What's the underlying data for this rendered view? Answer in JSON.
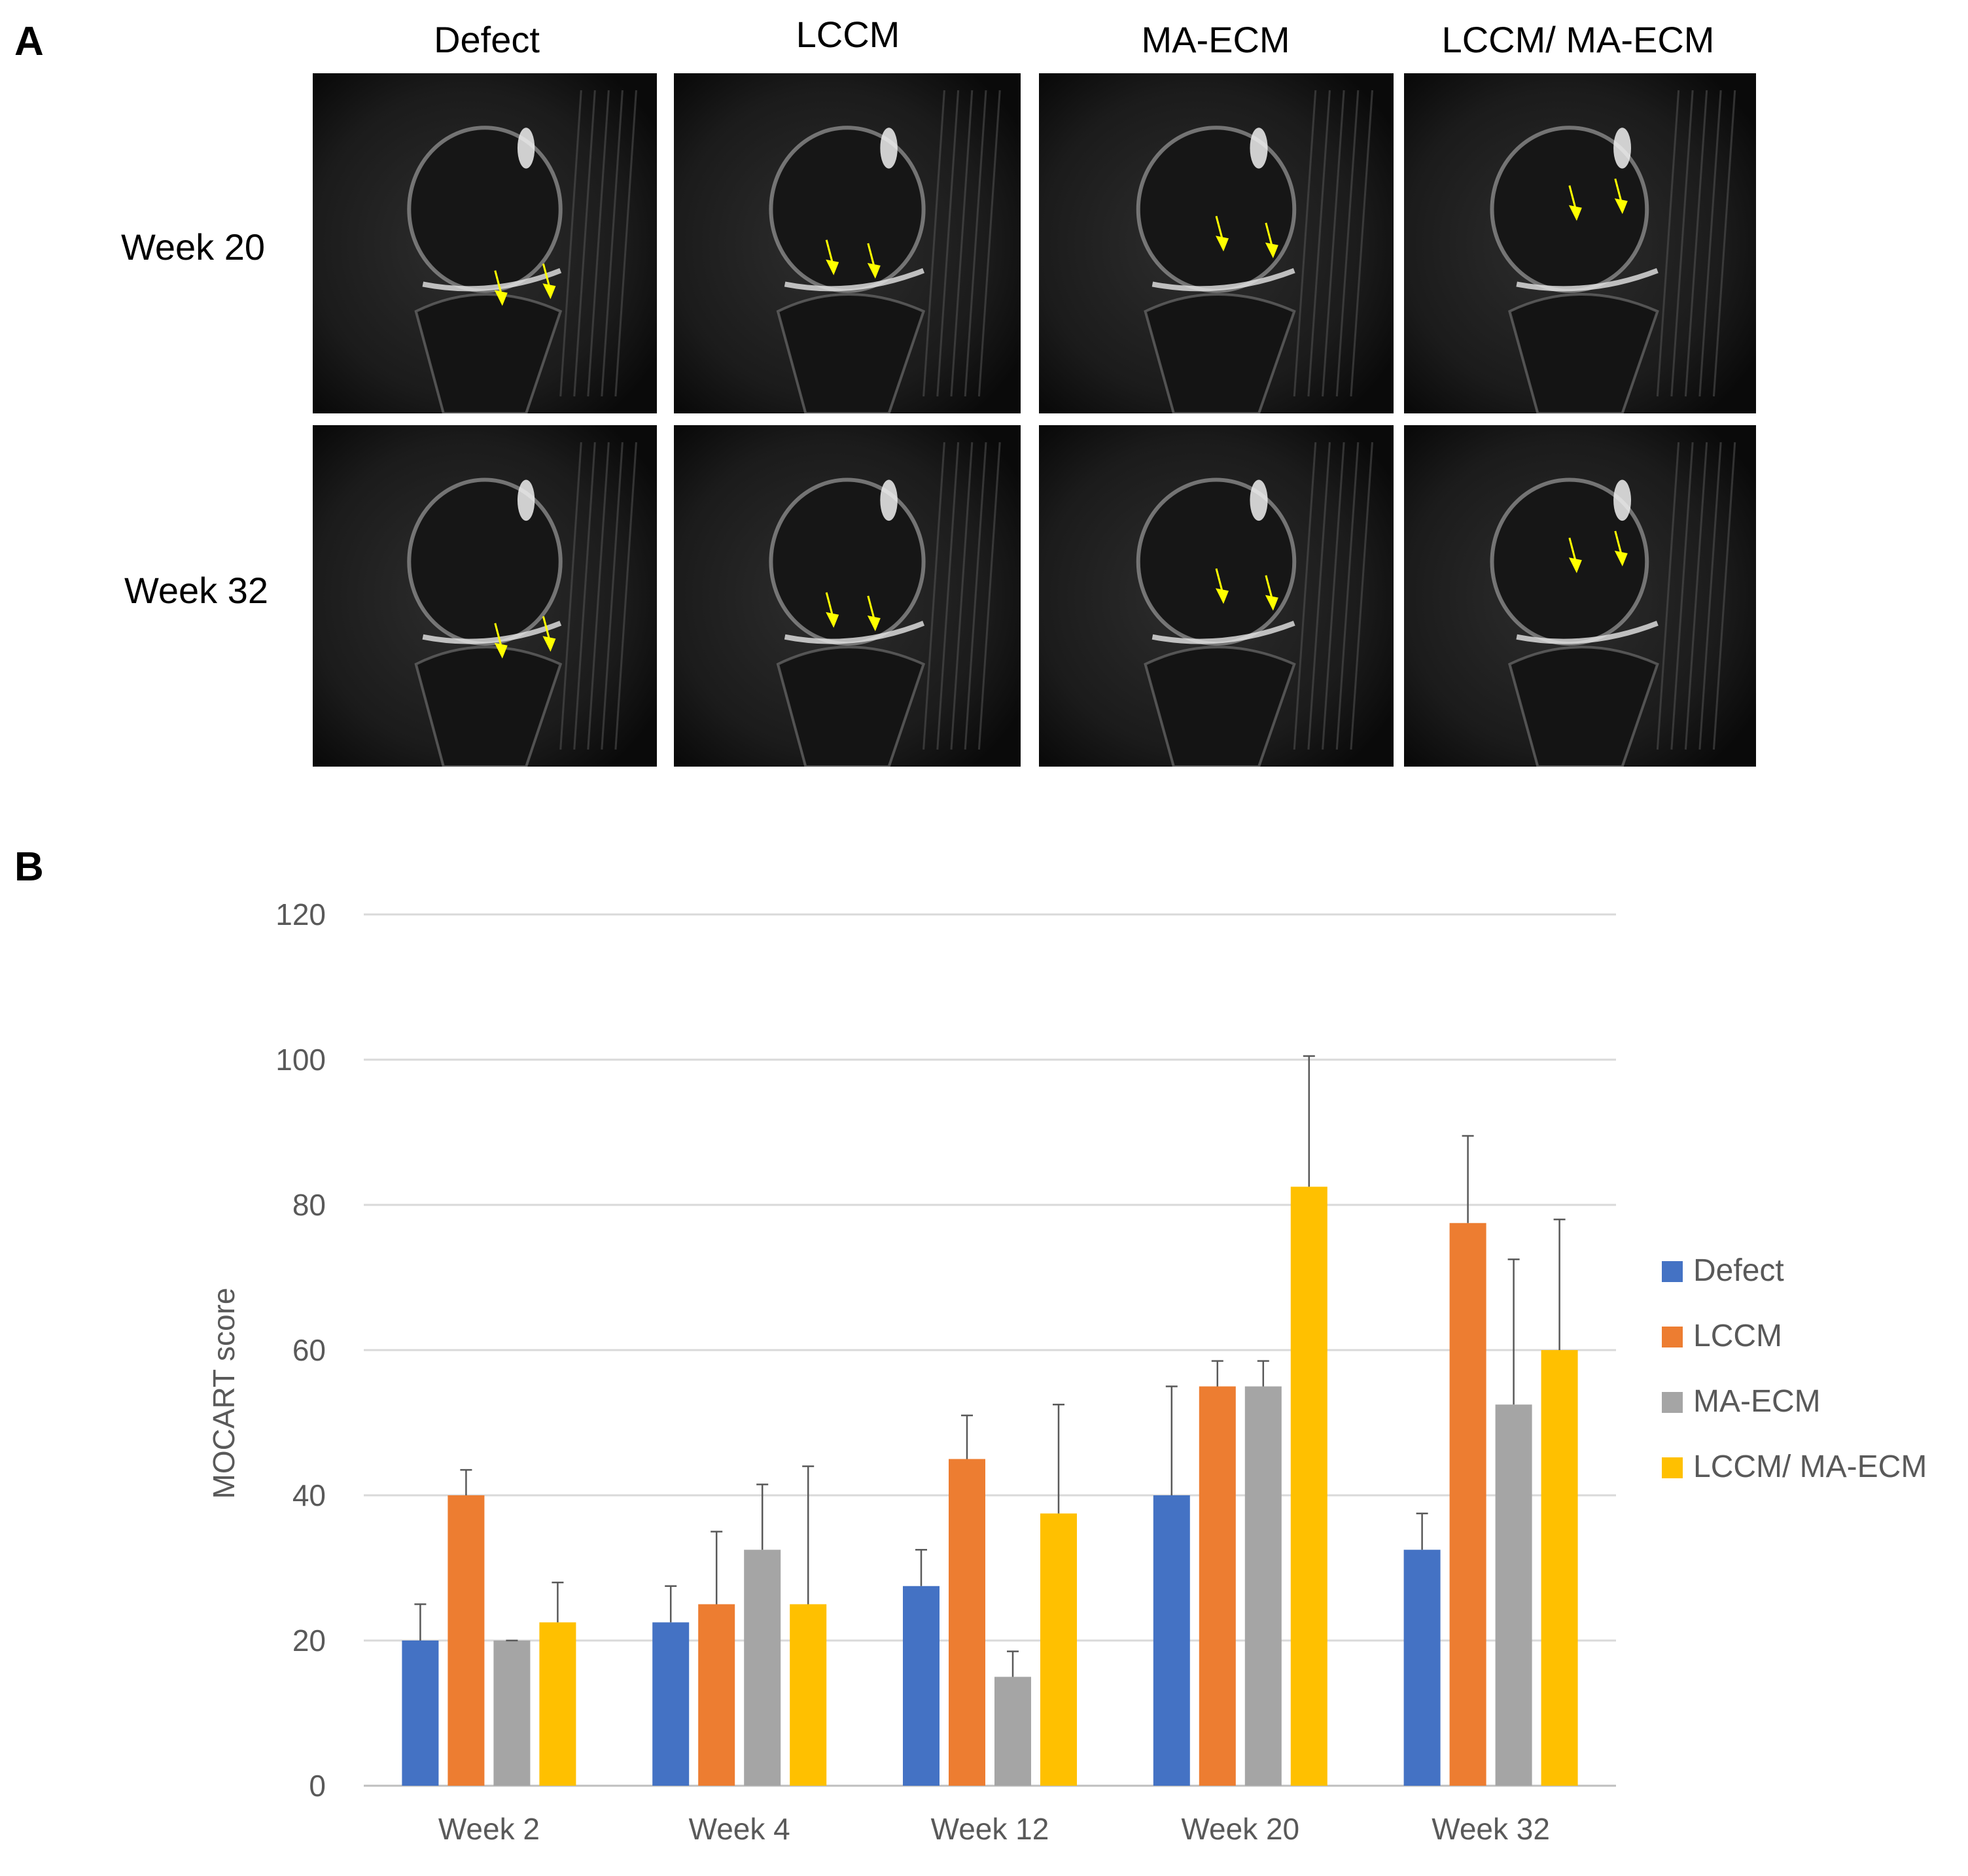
{
  "panel_a": {
    "label": "A",
    "columns": [
      "Defect",
      "LCCM",
      "MA-ECM",
      "LCCM/ MA-ECM"
    ],
    "rows": [
      "Week 20",
      "Week 32"
    ],
    "arrow_color": "#ffff00"
  },
  "panel_b": {
    "label": "B"
  },
  "chart_data": {
    "type": "bar",
    "title": "",
    "xlabel": "",
    "ylabel": "MOCART score",
    "ylim": [
      0,
      120
    ],
    "yticks": [
      0,
      20,
      40,
      60,
      80,
      100,
      120
    ],
    "grid": true,
    "legend_position": "right",
    "categories": [
      "Week 2",
      "Week 4",
      "Week 12",
      "Week 20",
      "Week 32"
    ],
    "series": [
      {
        "name": "Defect",
        "color": "#4472c4",
        "values": [
          20,
          22.5,
          27.5,
          40,
          32.5
        ],
        "errors": [
          5,
          5,
          5,
          15,
          5
        ]
      },
      {
        "name": "LCCM",
        "color": "#ed7d31",
        "values": [
          40,
          25,
          45,
          55,
          77.5
        ],
        "errors": [
          3.5,
          10,
          6,
          3.5,
          12
        ]
      },
      {
        "name": "MA-ECM",
        "color": "#a5a5a5",
        "values": [
          20,
          32.5,
          15,
          55,
          52.5
        ],
        "errors": [
          0,
          9,
          3.5,
          3.5,
          20
        ]
      },
      {
        "name": "LCCM/ MA-ECM",
        "color": "#ffc000",
        "values": [
          22.5,
          25,
          37.5,
          82.5,
          60
        ],
        "errors": [
          5.5,
          19,
          15,
          18,
          18
        ]
      }
    ]
  }
}
